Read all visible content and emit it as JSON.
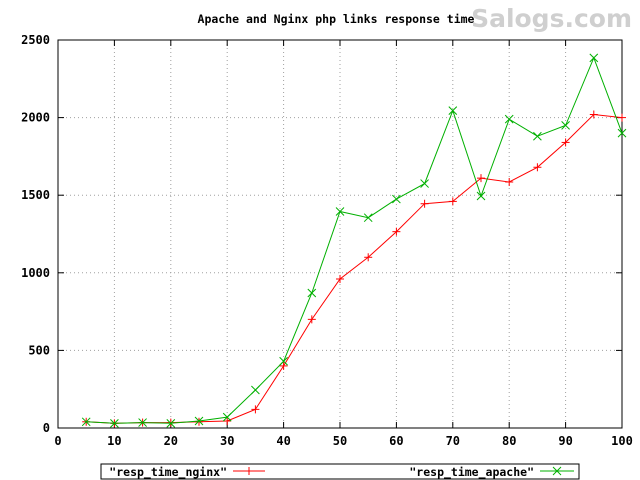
{
  "watermark": "Salogs.com",
  "chart_data": {
    "type": "line",
    "title": "Apache and Nginx php links response time",
    "xlabel": "",
    "ylabel": "",
    "xlim": [
      0,
      100
    ],
    "ylim": [
      0,
      2500
    ],
    "xticks": [
      0,
      10,
      20,
      30,
      40,
      50,
      60,
      70,
      80,
      90,
      100
    ],
    "yticks": [
      0,
      500,
      1000,
      1500,
      2000,
      2500
    ],
    "grid": true,
    "legend_position": "bottom",
    "series": [
      {
        "name": "\"resp_time_nginx\"",
        "color": "#ff0000",
        "marker": "plus",
        "x": [
          5,
          10,
          15,
          20,
          25,
          30,
          35,
          40,
          45,
          50,
          55,
          60,
          65,
          70,
          75,
          80,
          85,
          90,
          95,
          100
        ],
        "y": [
          40,
          30,
          35,
          35,
          40,
          45,
          120,
          400,
          700,
          960,
          1100,
          1265,
          1445,
          1460,
          1610,
          1585,
          1680,
          1840,
          2020,
          2000
        ]
      },
      {
        "name": "\"resp_time_apache\"",
        "color": "#00b000",
        "marker": "cross",
        "x": [
          5,
          10,
          15,
          20,
          25,
          30,
          35,
          40,
          45,
          50,
          55,
          60,
          65,
          70,
          75,
          80,
          85,
          90,
          95,
          100
        ],
        "y": [
          40,
          30,
          35,
          30,
          45,
          70,
          245,
          430,
          870,
          1395,
          1355,
          1475,
          1575,
          2045,
          1495,
          1990,
          1880,
          1950,
          2385,
          1900
        ]
      }
    ]
  }
}
